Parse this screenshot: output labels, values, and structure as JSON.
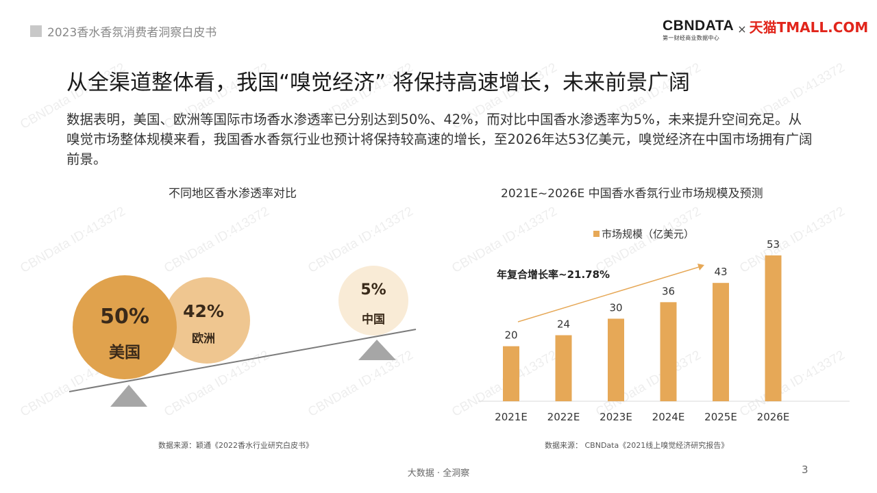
{
  "header": {
    "doc_tag": "2023香水香氛消费者洞察白皮书",
    "logo_cbn": "CBNDATA",
    "logo_cbn_sub": "第一财经商业数据中心",
    "logo_times": "×",
    "logo_tmall": "天猫TMALL.COM"
  },
  "headline": "从全渠道整体看，我国“嗅觉经济” 将保持高速增长，未来前景广阔",
  "lead": "数据表明，美国、欧洲等国际市场香水渗透率已分别达到50%、42%，而对比中国香水渗透率为5%，未来提升空间充足。从嗅觉市场整体规模来看，我国香水香氛行业也预计将保持较高速的增长，至2026年达53亿美元，嗅觉经济在中国市场拥有广阔前景。",
  "left_chart": {
    "title": "不同地区香水渗透率对比",
    "source": "数据来源：颖通《2022香水行业研究白皮书》",
    "bubbles": [
      {
        "label": "美国",
        "value_text": "50%",
        "value": 50,
        "color": "#e0a24d",
        "text_color": "#3a2a1a"
      },
      {
        "label": "欧洲",
        "value_text": "42%",
        "value": 42,
        "color": "#efc690",
        "text_color": "#3a2a1a"
      },
      {
        "label": "中国",
        "value_text": "5%",
        "value": 5,
        "color": "#f9ebd6",
        "text_color": "#3a2a1a"
      }
    ]
  },
  "right_chart": {
    "title": "2021E~2026E 中国香水香氛行业市场规模及预测",
    "source": "数据来源： CBNData《2021线上嗅觉经济研究报告》",
    "cagr_label": "年复合增长率~21.78%"
  },
  "chart_data": {
    "type": "bar",
    "title": "2021E~2026E 中国香水香氛行业市场规模及预测",
    "categories": [
      "2021E",
      "2022E",
      "2023E",
      "2024E",
      "2025E",
      "2026E"
    ],
    "series": [
      {
        "name": "市场规模（亿美元）",
        "values": [
          20,
          24,
          30,
          36,
          43,
          53
        ]
      }
    ],
    "ylim": [
      0,
      60
    ],
    "legend": "top-center",
    "grid": false,
    "color": "#e6a857"
  },
  "watermark": "CBNData ID:413372",
  "footer": "大数据 · 全洞察",
  "page_number": "3"
}
